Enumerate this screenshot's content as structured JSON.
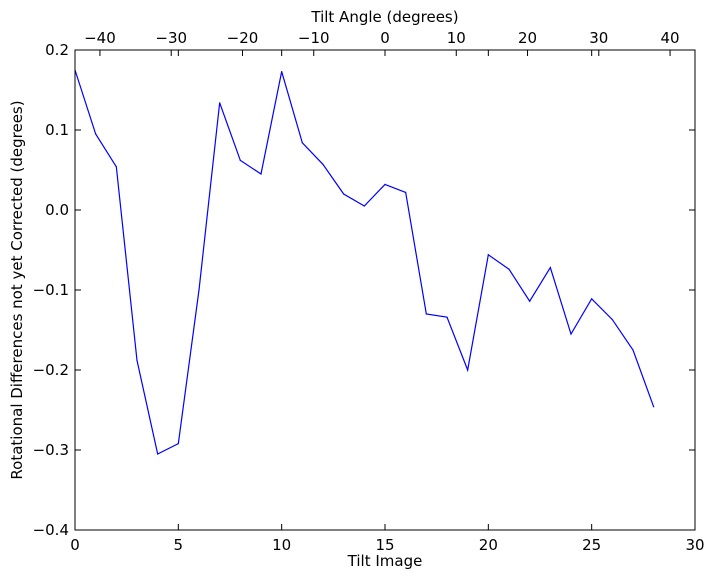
{
  "chart_data": {
    "type": "line",
    "title": "",
    "xlabel": "Tilt Image",
    "ylabel": "Rotational Differences not yet Corrected (degrees)",
    "top_xlabel": "Tilt Angle (degrees)",
    "xlim": [
      0,
      30
    ],
    "ylim": [
      -0.4,
      0.2
    ],
    "top_xlim": [
      -43.5,
      43.5
    ],
    "x_ticks": [
      0,
      5,
      10,
      15,
      20,
      25,
      30
    ],
    "x_tick_labels": [
      "0",
      "5",
      "10",
      "15",
      "20",
      "25",
      "30"
    ],
    "y_ticks": [
      -0.4,
      -0.3,
      -0.2,
      -0.1,
      0.0,
      0.1,
      0.2
    ],
    "y_tick_labels": [
      "−0.4",
      "−0.3",
      "−0.2",
      "−0.1",
      "0.0",
      "0.1",
      "0.2"
    ],
    "top_x_ticks": [
      -40,
      -30,
      -20,
      -10,
      0,
      10,
      20,
      30,
      40
    ],
    "top_x_tick_labels": [
      "−40",
      "−30",
      "−20",
      "−10",
      "0",
      "10",
      "20",
      "30",
      "40"
    ],
    "grid": false,
    "series_color": "#0000ff",
    "series": [
      {
        "x": [
          0,
          1,
          2,
          3,
          4,
          5,
          6,
          7,
          8,
          9,
          10,
          11,
          12,
          13,
          14,
          15,
          16,
          17,
          18,
          19,
          20,
          21,
          22,
          23,
          24,
          25,
          26,
          27,
          28
        ],
        "values": [
          0.175,
          0.095,
          0.054,
          -0.188,
          -0.305,
          -0.292,
          -0.1,
          0.134,
          0.062,
          0.045,
          0.173,
          0.084,
          0.057,
          0.02,
          0.005,
          0.032,
          0.022,
          -0.13,
          -0.134,
          -0.2,
          -0.056,
          -0.074,
          -0.114,
          -0.072,
          -0.155,
          -0.111,
          -0.137,
          -0.175,
          -0.246
        ]
      }
    ]
  }
}
